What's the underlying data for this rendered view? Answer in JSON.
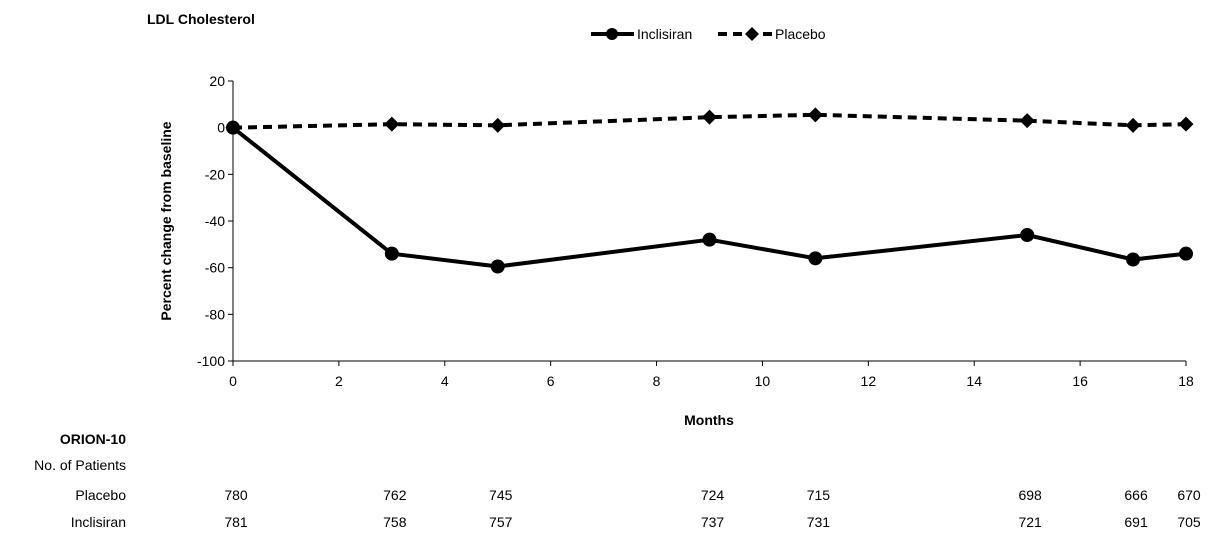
{
  "chart_data": {
    "type": "line",
    "title": "LDL Cholesterol",
    "xlabel": "Months",
    "ylabel": "Percent change from baseline",
    "xlim": [
      0,
      18
    ],
    "ylim": [
      -100,
      20
    ],
    "xticks": [
      0,
      2,
      4,
      6,
      8,
      10,
      12,
      14,
      16,
      18
    ],
    "yticks": [
      20,
      0,
      -20,
      -40,
      -60,
      -80,
      -100
    ],
    "grid": false,
    "legend_position": "top",
    "series": [
      {
        "name": "Inclisiran",
        "style": "solid",
        "marker": "circle",
        "x": [
          0,
          3,
          5,
          9,
          11,
          15,
          17,
          18
        ],
        "y": [
          0,
          -54,
          -59.5,
          -48,
          -56,
          -46,
          -56.5,
          -54
        ]
      },
      {
        "name": "Placebo",
        "style": "dashed",
        "marker": "diamond",
        "x": [
          0,
          3,
          5,
          9,
          11,
          15,
          17,
          18
        ],
        "y": [
          0,
          1.5,
          1,
          4.5,
          5.5,
          3,
          1,
          1.5
        ]
      }
    ]
  },
  "table": {
    "study": "ORION-10",
    "header": "No. of Patients",
    "months": [
      0,
      3,
      5,
      9,
      11,
      15,
      17,
      18
    ],
    "rows": [
      {
        "label": "Placebo",
        "values": [
          "780",
          "762",
          "745",
          "724",
          "715",
          "698",
          "666",
          "670"
        ]
      },
      {
        "label": "Inclisiran",
        "values": [
          "781",
          "758",
          "757",
          "737",
          "731",
          "721",
          "691",
          "705"
        ]
      }
    ]
  }
}
